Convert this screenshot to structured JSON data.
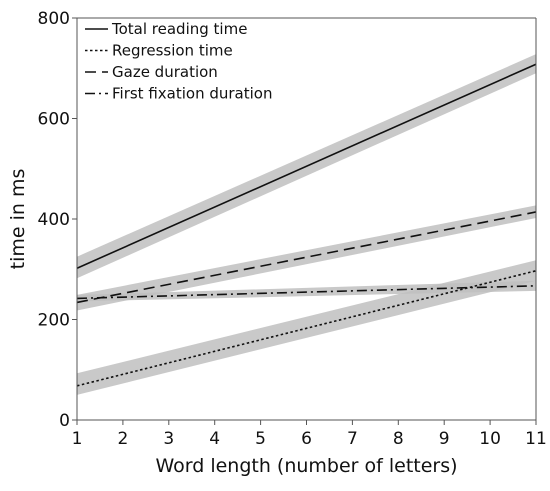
{
  "chart_data": {
    "type": "line",
    "title": "",
    "xlabel": "Word length (number of letters)",
    "ylabel": "time in ms",
    "xlim": [
      1,
      11
    ],
    "ylim": [
      0,
      800
    ],
    "x_ticks": [
      "1",
      "2",
      "3",
      "4",
      "5",
      "6",
      "7",
      "8",
      "9",
      "10",
      "11"
    ],
    "y_ticks": [
      "0",
      "200",
      "400",
      "600",
      "800"
    ],
    "grid": false,
    "legend_position": "top-left",
    "band_color": "#c0c0c0",
    "line_color": "#111111",
    "series": [
      {
        "name": "Total reading time",
        "style": "solid",
        "x": [
          1,
          11
        ],
        "y": [
          302,
          708
        ],
        "band_lower": [
          282,
          690
        ],
        "band_upper": [
          325,
          728
        ]
      },
      {
        "name": "Regression time",
        "style": "dotted",
        "x": [
          1,
          11
        ],
        "y": [
          68,
          297
        ],
        "band_lower": [
          50,
          277
        ],
        "band_upper": [
          93,
          318
        ]
      },
      {
        "name": "Gaze duration",
        "style": "dashed",
        "x": [
          1,
          11
        ],
        "y": [
          234,
          414
        ],
        "band_lower": [
          218,
          402
        ],
        "band_upper": [
          249,
          427
        ]
      },
      {
        "name": "First fixation duration",
        "style": "dashdot",
        "x": [
          1,
          11
        ],
        "y": [
          242,
          267
        ],
        "band_lower": [
          236,
          257
        ],
        "band_upper": [
          249,
          277
        ]
      }
    ]
  }
}
